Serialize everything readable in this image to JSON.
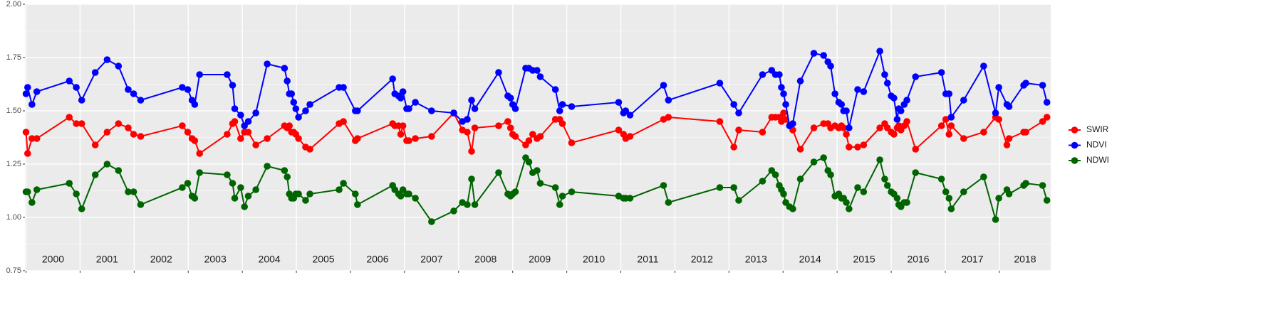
{
  "chart_data": {
    "type": "line",
    "x": [
      2000.0,
      2000.03,
      2000.11,
      2000.2,
      2000.8,
      2000.93,
      2001.03,
      2001.28,
      2001.5,
      2001.71,
      2001.89,
      2001.99,
      2002.12,
      2002.89,
      2002.99,
      2003.07,
      2003.12,
      2003.21,
      2003.72,
      2003.82,
      2003.86,
      2003.97,
      2004.04,
      2004.11,
      2004.25,
      2004.46,
      2004.78,
      2004.83,
      2004.87,
      2004.91,
      2004.95,
      2004.99,
      2005.04,
      2005.17,
      2005.25,
      2005.79,
      2005.87,
      2006.09,
      2006.13,
      2006.78,
      2006.82,
      2006.89,
      2006.93,
      2006.97,
      2007.04,
      2007.08,
      2007.2,
      2007.5,
      2007.91,
      2008.07,
      2008.16,
      2008.24,
      2008.3,
      2008.74,
      2008.91,
      2008.96,
      2009.0,
      2009.05,
      2009.24,
      2009.3,
      2009.37,
      2009.45,
      2009.51,
      2009.79,
      2009.87,
      2009.92,
      2010.09,
      2010.96,
      2011.05,
      2011.09,
      2011.17,
      2011.79,
      2011.88,
      2012.83,
      2013.09,
      2013.18,
      2013.62,
      2013.79,
      2013.86,
      2013.93,
      2013.97,
      2014.01,
      2014.05,
      2014.12,
      2014.18,
      2014.32,
      2014.57,
      2014.75,
      2014.83,
      2014.88,
      2014.96,
      2015.03,
      2015.08,
      2015.12,
      2015.17,
      2015.22,
      2015.38,
      2015.49,
      2015.79,
      2015.88,
      2015.93,
      2016.0,
      2016.05,
      2016.11,
      2016.14,
      2016.18,
      2016.24,
      2016.29,
      2016.45,
      2016.93,
      2017.01,
      2017.07,
      2017.11,
      2017.34,
      2017.71,
      2017.93,
      2017.99,
      2018.14,
      2018.18,
      2018.45,
      2018.49,
      2018.8,
      2018.88
    ],
    "series": [
      {
        "name": "SWIR",
        "color": "#ff0000",
        "values": [
          1.4,
          1.3,
          1.37,
          1.37,
          1.47,
          1.44,
          1.44,
          1.34,
          1.4,
          1.44,
          1.42,
          1.39,
          1.38,
          1.43,
          1.4,
          1.37,
          1.36,
          1.3,
          1.39,
          1.44,
          1.45,
          1.37,
          1.4,
          1.4,
          1.34,
          1.37,
          1.43,
          1.42,
          1.43,
          1.4,
          1.4,
          1.39,
          1.37,
          1.33,
          1.32,
          1.44,
          1.45,
          1.36,
          1.37,
          1.44,
          1.43,
          1.43,
          1.39,
          1.43,
          1.36,
          1.36,
          1.37,
          1.38,
          1.49,
          1.41,
          1.4,
          1.31,
          1.42,
          1.43,
          1.45,
          1.42,
          1.39,
          1.38,
          1.34,
          1.36,
          1.39,
          1.37,
          1.38,
          1.46,
          1.46,
          1.44,
          1.35,
          1.41,
          1.39,
          1.37,
          1.38,
          1.46,
          1.47,
          1.45,
          1.33,
          1.41,
          1.4,
          1.47,
          1.47,
          1.47,
          1.45,
          1.49,
          1.46,
          1.43,
          1.41,
          1.32,
          1.42,
          1.44,
          1.44,
          1.42,
          1.43,
          1.42,
          1.43,
          1.42,
          1.39,
          1.33,
          1.33,
          1.34,
          1.42,
          1.44,
          1.42,
          1.4,
          1.39,
          1.42,
          1.43,
          1.41,
          1.43,
          1.45,
          1.32,
          1.43,
          1.46,
          1.39,
          1.43,
          1.37,
          1.4,
          1.47,
          1.46,
          1.34,
          1.37,
          1.4,
          1.4,
          1.45,
          1.47
        ]
      },
      {
        "name": "NDVI",
        "color": "#0000ff",
        "values": [
          1.58,
          1.61,
          1.53,
          1.59,
          1.64,
          1.61,
          1.55,
          1.68,
          1.74,
          1.71,
          1.6,
          1.58,
          1.55,
          1.61,
          1.6,
          1.55,
          1.53,
          1.67,
          1.67,
          1.62,
          1.51,
          1.48,
          1.43,
          1.45,
          1.49,
          1.72,
          1.7,
          1.64,
          1.58,
          1.58,
          1.54,
          1.51,
          1.47,
          1.5,
          1.53,
          1.61,
          1.61,
          1.5,
          1.5,
          1.65,
          1.58,
          1.57,
          1.56,
          1.59,
          1.51,
          1.51,
          1.54,
          1.5,
          1.49,
          1.45,
          1.46,
          1.55,
          1.51,
          1.68,
          1.57,
          1.56,
          1.53,
          1.51,
          1.7,
          1.7,
          1.69,
          1.69,
          1.66,
          1.6,
          1.5,
          1.53,
          1.52,
          1.54,
          1.49,
          1.5,
          1.48,
          1.62,
          1.55,
          1.63,
          1.53,
          1.49,
          1.67,
          1.69,
          1.67,
          1.67,
          1.61,
          1.58,
          1.53,
          1.43,
          1.44,
          1.64,
          1.77,
          1.76,
          1.73,
          1.71,
          1.58,
          1.54,
          1.53,
          1.5,
          1.5,
          1.42,
          1.6,
          1.59,
          1.78,
          1.67,
          1.63,
          1.57,
          1.56,
          1.46,
          1.51,
          1.5,
          1.53,
          1.55,
          1.66,
          1.68,
          1.58,
          1.58,
          1.47,
          1.55,
          1.71,
          1.49,
          1.61,
          1.53,
          1.52,
          1.62,
          1.63,
          1.62,
          1.54
        ]
      },
      {
        "name": "NDWI",
        "color": "#006400",
        "values": [
          1.12,
          1.12,
          1.07,
          1.13,
          1.16,
          1.11,
          1.04,
          1.2,
          1.25,
          1.22,
          1.12,
          1.12,
          1.06,
          1.14,
          1.16,
          1.1,
          1.09,
          1.21,
          1.2,
          1.16,
          1.09,
          1.14,
          1.05,
          1.1,
          1.13,
          1.24,
          1.22,
          1.19,
          1.11,
          1.09,
          1.09,
          1.11,
          1.11,
          1.08,
          1.11,
          1.13,
          1.16,
          1.11,
          1.06,
          1.15,
          1.13,
          1.11,
          1.1,
          1.13,
          1.11,
          1.11,
          1.09,
          0.98,
          1.03,
          1.07,
          1.06,
          1.18,
          1.06,
          1.21,
          1.11,
          1.1,
          1.11,
          1.12,
          1.28,
          1.26,
          1.21,
          1.22,
          1.16,
          1.14,
          1.06,
          1.1,
          1.12,
          1.1,
          1.09,
          1.09,
          1.09,
          1.15,
          1.07,
          1.14,
          1.14,
          1.08,
          1.17,
          1.22,
          1.2,
          1.15,
          1.13,
          1.11,
          1.07,
          1.05,
          1.04,
          1.18,
          1.26,
          1.28,
          1.22,
          1.2,
          1.1,
          1.11,
          1.09,
          1.09,
          1.07,
          1.04,
          1.14,
          1.12,
          1.27,
          1.18,
          1.15,
          1.12,
          1.11,
          1.09,
          1.06,
          1.05,
          1.07,
          1.07,
          1.21,
          1.18,
          1.12,
          1.09,
          1.04,
          1.12,
          1.19,
          0.99,
          1.09,
          1.13,
          1.11,
          1.15,
          1.16,
          1.15,
          1.08
        ]
      }
    ],
    "xlim": [
      1999.98,
      2018.95
    ],
    "xticks": [
      2000,
      2001,
      2002,
      2003,
      2004,
      2005,
      2006,
      2007,
      2008,
      2009,
      2010,
      2011,
      2012,
      2013,
      2014,
      2015,
      2016,
      2017,
      2018
    ],
    "year_labels": [
      "2000",
      "2001",
      "2002",
      "2003",
      "2004",
      "2005",
      "2006",
      "2007",
      "2008",
      "2009",
      "2010",
      "2011",
      "2012",
      "2013",
      "2014",
      "2015",
      "2016",
      "2017",
      "2018"
    ],
    "ylim": [
      0.75,
      2.0
    ],
    "yticks": [
      0.75,
      {
        "value": 1.0,
        "label": "1.00"
      },
      1.25,
      {
        "value": 1.5,
        "label": "1.50"
      },
      1.75,
      {
        "value": 2.0,
        "label": "2.00"
      }
    ],
    "grid": true,
    "legend": "right"
  }
}
